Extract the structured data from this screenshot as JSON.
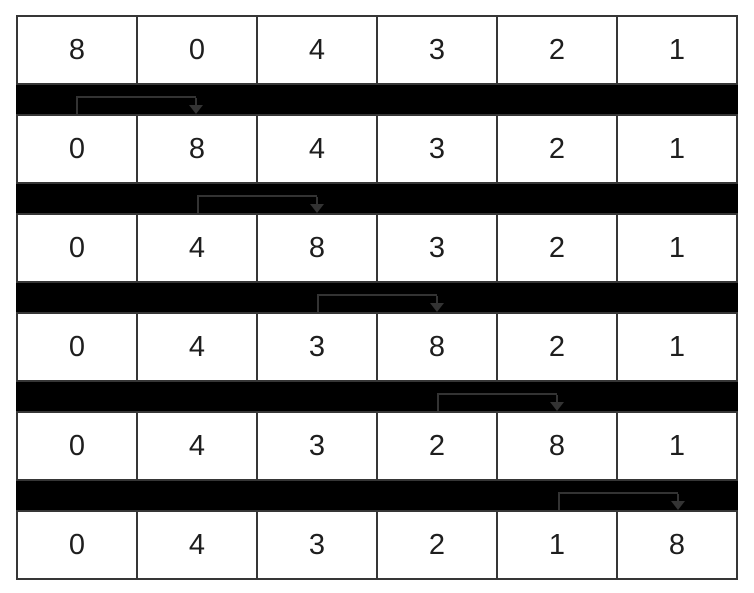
{
  "grid": {
    "columns": 6,
    "rows": [
      [
        "8",
        "0",
        "4",
        "3",
        "2",
        "1"
      ],
      [
        "0",
        "8",
        "4",
        "3",
        "2",
        "1"
      ],
      [
        "0",
        "4",
        "8",
        "3",
        "2",
        "1"
      ],
      [
        "0",
        "4",
        "3",
        "8",
        "2",
        "1"
      ],
      [
        "0",
        "4",
        "3",
        "2",
        "8",
        "1"
      ],
      [
        "0",
        "4",
        "3",
        "2",
        "1",
        "8"
      ]
    ],
    "swaps": [
      {
        "from_col": 1,
        "to_col": 2,
        "icon": "swap-arrow-icon"
      },
      {
        "from_col": 2,
        "to_col": 3,
        "icon": "swap-arrow-icon"
      },
      {
        "from_col": 3,
        "to_col": 4,
        "icon": "swap-arrow-icon"
      },
      {
        "from_col": 4,
        "to_col": 5,
        "icon": "swap-arrow-icon"
      },
      {
        "from_col": 5,
        "to_col": 6,
        "icon": "swap-arrow-icon"
      }
    ]
  },
  "colors": {
    "page_bg": "#ffffff",
    "cell_bg": "#ffffff",
    "cell_border": "#363636",
    "text": "#1e1e1e",
    "band": "#000000",
    "arrow": "#333333"
  }
}
